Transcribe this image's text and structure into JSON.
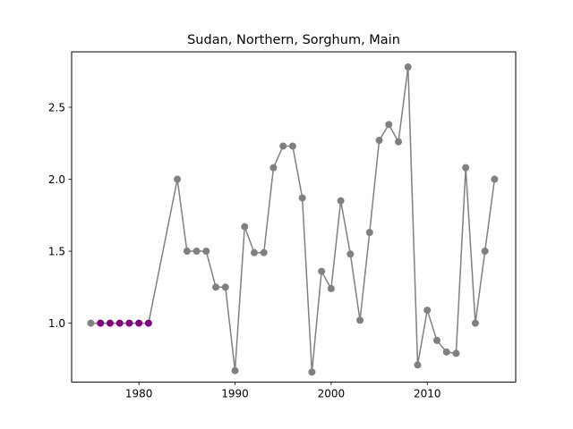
{
  "chart_data": {
    "type": "line",
    "title": "Sudan, Northern, Sorghum, Main",
    "xlabel": "",
    "ylabel": "",
    "xlim": [
      1973,
      2019.2
    ],
    "ylim": [
      0.59,
      2.885
    ],
    "xticks": [
      1980,
      1990,
      2000,
      2010
    ],
    "yticks": [
      1.0,
      1.5,
      2.0,
      2.5
    ],
    "ytick_labels": [
      "1.0",
      "1.5",
      "2.0",
      "2.5"
    ],
    "grid": false,
    "line_color": "#808080",
    "highlight_color": "#800080",
    "series": [
      {
        "x": [
          1975,
          1976,
          1977,
          1978,
          1979,
          1980,
          1981,
          1984,
          1985,
          1986,
          1987,
          1988,
          1989,
          1990,
          1991,
          1992,
          1993,
          1994,
          1995,
          1996,
          1997,
          1998,
          1999,
          2000,
          2001,
          2002,
          2003,
          2004,
          2005,
          2006,
          2007,
          2008,
          2009,
          2010,
          2011,
          2012,
          2013,
          2014,
          2015,
          2016,
          2017
        ],
        "y": [
          1.0,
          1.0,
          1.0,
          1.0,
          1.0,
          1.0,
          1.0,
          2.0,
          1.5,
          1.5,
          1.5,
          1.25,
          1.25,
          0.67,
          1.67,
          1.49,
          1.49,
          2.08,
          2.23,
          2.23,
          1.87,
          0.66,
          1.36,
          1.24,
          1.85,
          1.48,
          1.02,
          1.63,
          2.27,
          2.38,
          2.26,
          2.78,
          0.71,
          1.09,
          0.88,
          0.8,
          0.79,
          2.08,
          1.0,
          1.5,
          2.0
        ],
        "highlighted": [
          1976,
          1977,
          1978,
          1979,
          1980,
          1981
        ]
      }
    ]
  }
}
